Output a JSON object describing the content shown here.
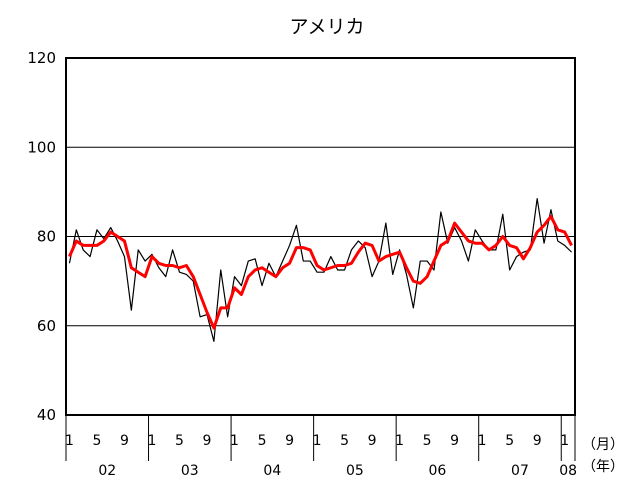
{
  "chart_data": {
    "type": "line",
    "title": "アメリカ",
    "ylim": [
      40,
      120
    ],
    "yticks": [
      40,
      60,
      80,
      100,
      120
    ],
    "grid": "horizontal",
    "x_month_ticks": [
      "1",
      "5",
      "9"
    ],
    "years": [
      "02",
      "03",
      "04",
      "05",
      "06",
      "07",
      "08"
    ],
    "month_unit_label": "（月）",
    "year_unit_label": "（年）",
    "colors": {
      "monthly": "#000000",
      "moving_average": "#ff0000",
      "grid": "#000000"
    },
    "series": [
      {
        "values": [
          74,
          81.5,
          77,
          75.5,
          81.5,
          79.5,
          82,
          79,
          75.5,
          63.5,
          77,
          74.5,
          76,
          73,
          71,
          77,
          72,
          71.5,
          70,
          62,
          62.5,
          56.5,
          72.5,
          62,
          71,
          69,
          74.5,
          75,
          69,
          74,
          71,
          74.5,
          78,
          82.5,
          74.5,
          74.5,
          72,
          72,
          75.5,
          72.5,
          72.5,
          77,
          79,
          77.5,
          71,
          74.5,
          83,
          71.5,
          77,
          71.5,
          64,
          74.5,
          74.5,
          72.5,
          85.5,
          78.5,
          82,
          79,
          74.5,
          81.5,
          79,
          77,
          77,
          85,
          72.5,
          75.5,
          76.5,
          77,
          88.5,
          78.5,
          86,
          79,
          78,
          76.5
        ]
      },
      {
        "values": [
          75.5,
          79,
          78,
          78,
          78,
          79,
          81,
          80,
          79,
          73,
          72,
          71,
          75.5,
          74,
          73.5,
          73.5,
          73,
          73.5,
          71,
          67,
          63,
          59.5,
          64,
          64,
          68.5,
          67,
          71,
          72.5,
          73,
          72,
          71,
          73,
          74,
          77.5,
          77.5,
          77,
          73.5,
          72.5,
          73,
          73.5,
          73.5,
          74,
          76.5,
          78.5,
          78,
          74.5,
          75.5,
          76,
          76.5,
          73,
          70,
          69.5,
          71,
          74.5,
          78,
          79,
          83,
          81,
          79,
          78.5,
          78.5,
          77,
          78,
          80,
          78,
          77.5,
          75,
          77.5,
          81,
          82.5,
          84.5,
          81.5,
          81,
          78
        ]
      }
    ]
  }
}
